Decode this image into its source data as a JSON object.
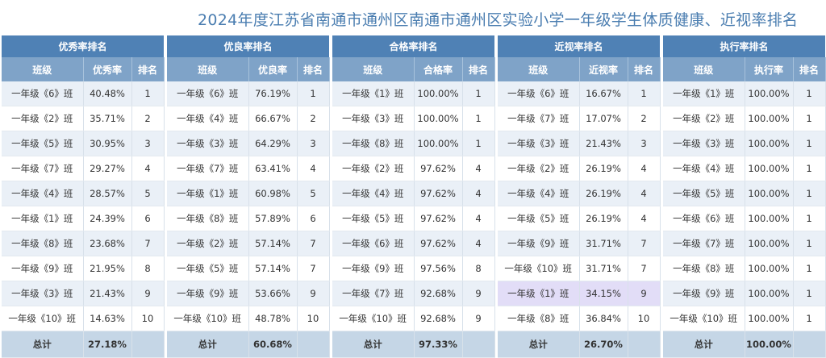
{
  "title": "2024年度江苏省南通市通州区南通市通州区实验小学一年级学生体质健康、近视率排名",
  "colors": {
    "header": "#4f81b5",
    "subheader": "#7fa3c8",
    "row_alt": "#eaf0f7",
    "total": "#c5d6e6",
    "highlight": "#e2ddf7",
    "title": "#4a7db0"
  },
  "tables": [
    {
      "title": "优秀率排名",
      "headers": [
        "班级",
        "优秀率",
        "排名"
      ],
      "rows": [
        [
          "一年级《6》班",
          "40.48%",
          "1"
        ],
        [
          "一年级《2》班",
          "35.71%",
          "2"
        ],
        [
          "一年级《5》班",
          "30.95%",
          "3"
        ],
        [
          "一年级《7》班",
          "29.27%",
          "4"
        ],
        [
          "一年级《4》班",
          "28.57%",
          "5"
        ],
        [
          "一年级《1》班",
          "24.39%",
          "6"
        ],
        [
          "一年级《8》班",
          "23.68%",
          "7"
        ],
        [
          "一年级《9》班",
          "21.95%",
          "8"
        ],
        [
          "一年级《3》班",
          "21.43%",
          "9"
        ],
        [
          "一年级《10》班",
          "14.63%",
          "10"
        ]
      ],
      "total": [
        "总计",
        "27.18%",
        ""
      ]
    },
    {
      "title": "优良率排名",
      "headers": [
        "班级",
        "优良率",
        "排名"
      ],
      "rows": [
        [
          "一年级《6》班",
          "76.19%",
          "1"
        ],
        [
          "一年级《4》班",
          "66.67%",
          "2"
        ],
        [
          "一年级《3》班",
          "64.29%",
          "3"
        ],
        [
          "一年级《7》班",
          "63.41%",
          "4"
        ],
        [
          "一年级《1》班",
          "60.98%",
          "5"
        ],
        [
          "一年级《8》班",
          "57.89%",
          "6"
        ],
        [
          "一年级《2》班",
          "57.14%",
          "7"
        ],
        [
          "一年级《5》班",
          "57.14%",
          "7"
        ],
        [
          "一年级《9》班",
          "53.66%",
          "9"
        ],
        [
          "一年级《10》班",
          "48.78%",
          "10"
        ]
      ],
      "total": [
        "总计",
        "60.68%",
        ""
      ]
    },
    {
      "title": "合格率排名",
      "headers": [
        "班级",
        "合格率",
        "排名"
      ],
      "rows": [
        [
          "一年级《1》班",
          "100.00%",
          "1"
        ],
        [
          "一年级《3》班",
          "100.00%",
          "1"
        ],
        [
          "一年级《8》班",
          "100.00%",
          "1"
        ],
        [
          "一年级《2》班",
          "97.62%",
          "4"
        ],
        [
          "一年级《4》班",
          "97.62%",
          "4"
        ],
        [
          "一年级《5》班",
          "97.62%",
          "4"
        ],
        [
          "一年级《6》班",
          "97.62%",
          "4"
        ],
        [
          "一年级《9》班",
          "97.56%",
          "8"
        ],
        [
          "一年级《7》班",
          "92.68%",
          "9"
        ],
        [
          "一年级《10》班",
          "92.68%",
          "9"
        ]
      ],
      "total": [
        "总计",
        "97.33%",
        ""
      ]
    },
    {
      "title": "近视率排名",
      "headers": [
        "班级",
        "近视率",
        "排名"
      ],
      "rows": [
        [
          "一年级《6》班",
          "16.67%",
          "1"
        ],
        [
          "一年级《7》班",
          "17.07%",
          "2"
        ],
        [
          "一年级《3》班",
          "21.43%",
          "3"
        ],
        [
          "一年级《2》班",
          "26.19%",
          "4"
        ],
        [
          "一年级《4》班",
          "26.19%",
          "4"
        ],
        [
          "一年级《5》班",
          "26.19%",
          "4"
        ],
        [
          "一年级《9》班",
          "31.71%",
          "7"
        ],
        [
          "一年级《10》班",
          "31.71%",
          "7"
        ],
        [
          "一年级《1》班",
          "34.15%",
          "9"
        ],
        [
          "一年级《8》班",
          "36.84%",
          "10"
        ]
      ],
      "total": [
        "总计",
        "26.70%",
        ""
      ],
      "highlight_row": 8
    },
    {
      "title": "执行率排名",
      "headers": [
        "班级",
        "执行率",
        "排名"
      ],
      "rows": [
        [
          "一年级《1》班",
          "100.00%",
          "1"
        ],
        [
          "一年级《2》班",
          "100.00%",
          "1"
        ],
        [
          "一年级《3》班",
          "100.00%",
          "1"
        ],
        [
          "一年级《4》班",
          "100.00%",
          "1"
        ],
        [
          "一年级《5》班",
          "100.00%",
          "1"
        ],
        [
          "一年级《6》班",
          "100.00%",
          "1"
        ],
        [
          "一年级《7》班",
          "100.00%",
          "1"
        ],
        [
          "一年级《8》班",
          "100.00%",
          "1"
        ],
        [
          "一年级《9》班",
          "100.00%",
          "1"
        ],
        [
          "一年级《10》班",
          "100.00%",
          "1"
        ]
      ],
      "total": [
        "总计",
        "100.00%",
        ""
      ]
    }
  ]
}
